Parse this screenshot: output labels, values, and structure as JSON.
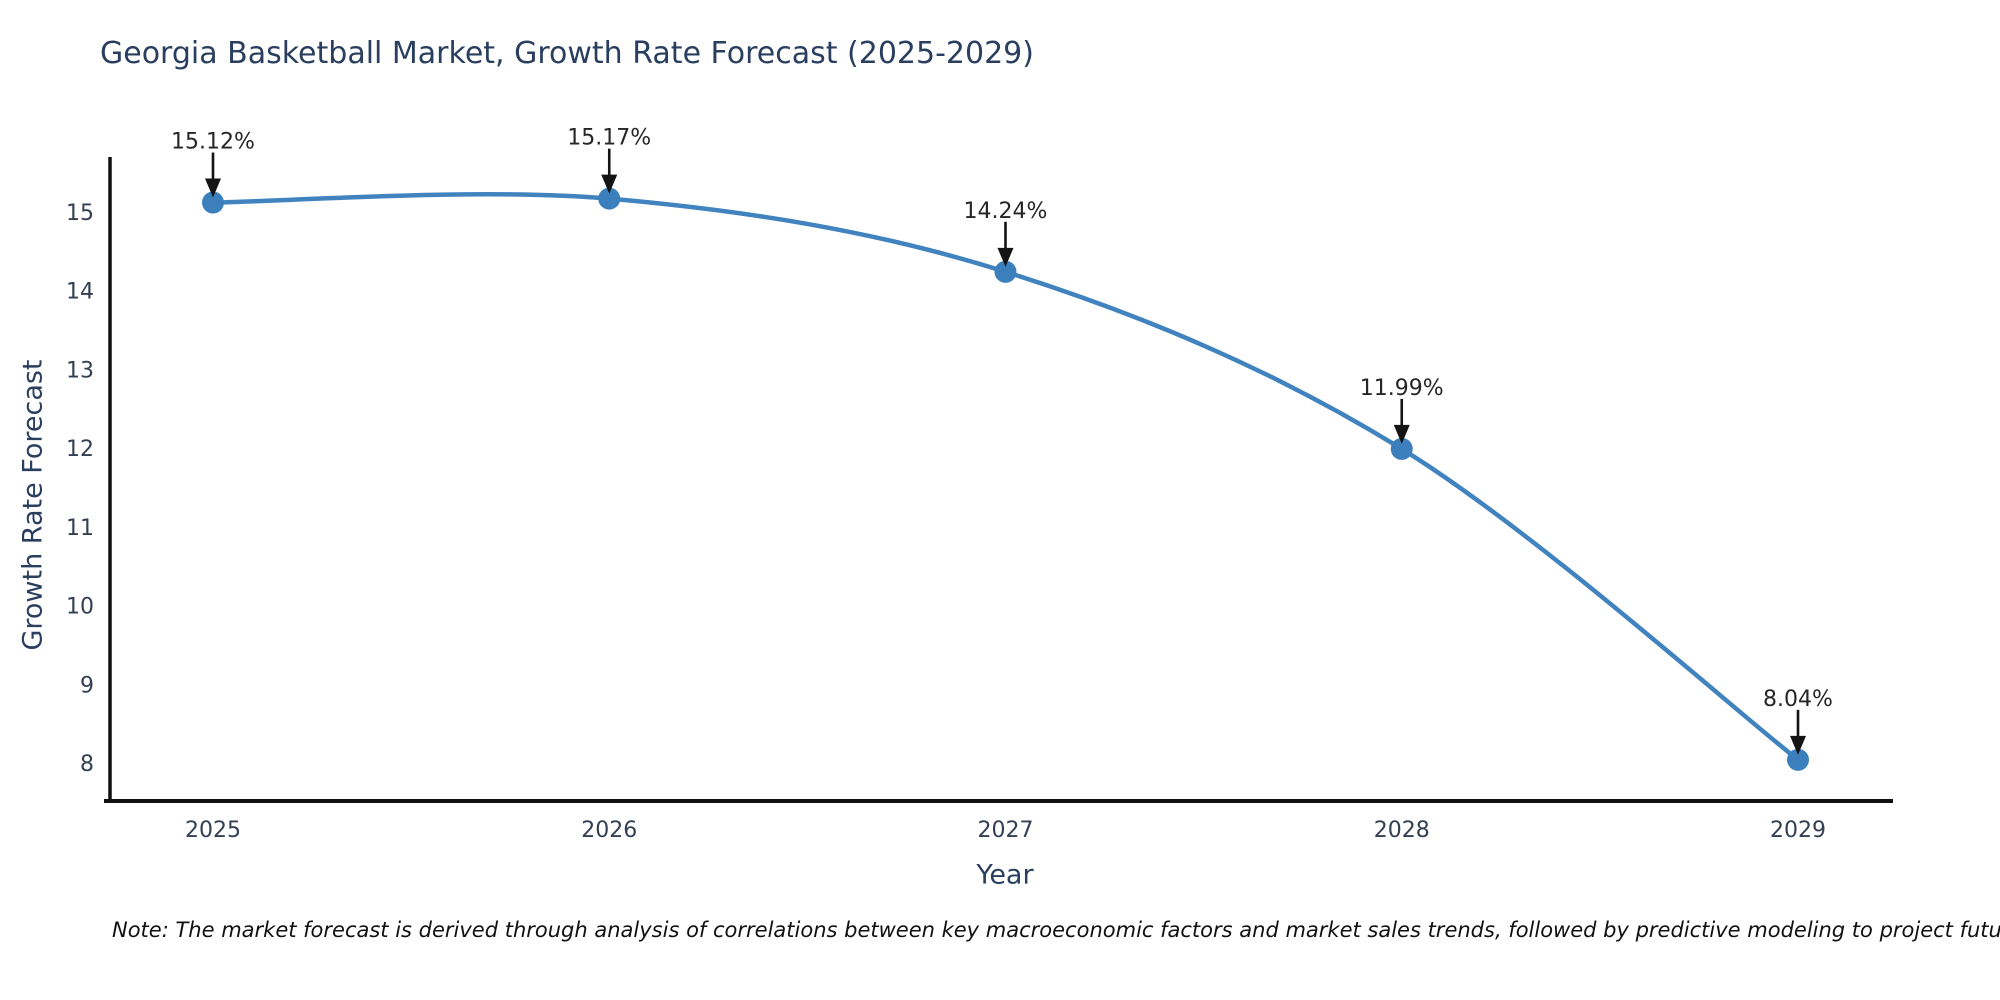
{
  "title": "Georgia Basketball Market, Growth Rate Forecast (2025-2029)",
  "note": "Note: The market forecast is derived through analysis of correlations between key macroeconomic factors and market sales trends, followed by predictive modeling to project future sales",
  "chart_data": {
    "type": "line",
    "title": "Georgia Basketball Market, Growth Rate Forecast (2025-2029)",
    "xlabel": "Year",
    "ylabel": "Growth Rate Forecast",
    "x": [
      2025,
      2026,
      2027,
      2028,
      2029
    ],
    "categories": [
      "2025",
      "2026",
      "2027",
      "2028",
      "2029"
    ],
    "values": [
      15.12,
      15.17,
      14.24,
      11.99,
      8.04
    ],
    "point_labels": [
      "15.12%",
      "15.17%",
      "14.24%",
      "11.99%",
      "8.04%"
    ],
    "yticks": [
      8,
      9,
      10,
      11,
      12,
      13,
      14,
      15
    ],
    "ylim": [
      7.5,
      15.7
    ],
    "line_shape": "spline",
    "grid": false,
    "legend_position": "none",
    "annotations_have_arrows": true
  },
  "colors": {
    "title": "#2a3f5f",
    "axis_title": "#2a3f5f",
    "tick_label": "#333f52",
    "axis_line": "#101010",
    "line": "#4083bf",
    "marker": "#3c7fbd",
    "annotation_text": "#262626",
    "annotation_arrow": "#141414",
    "note_text": "#111111",
    "background": "#ffffff"
  }
}
